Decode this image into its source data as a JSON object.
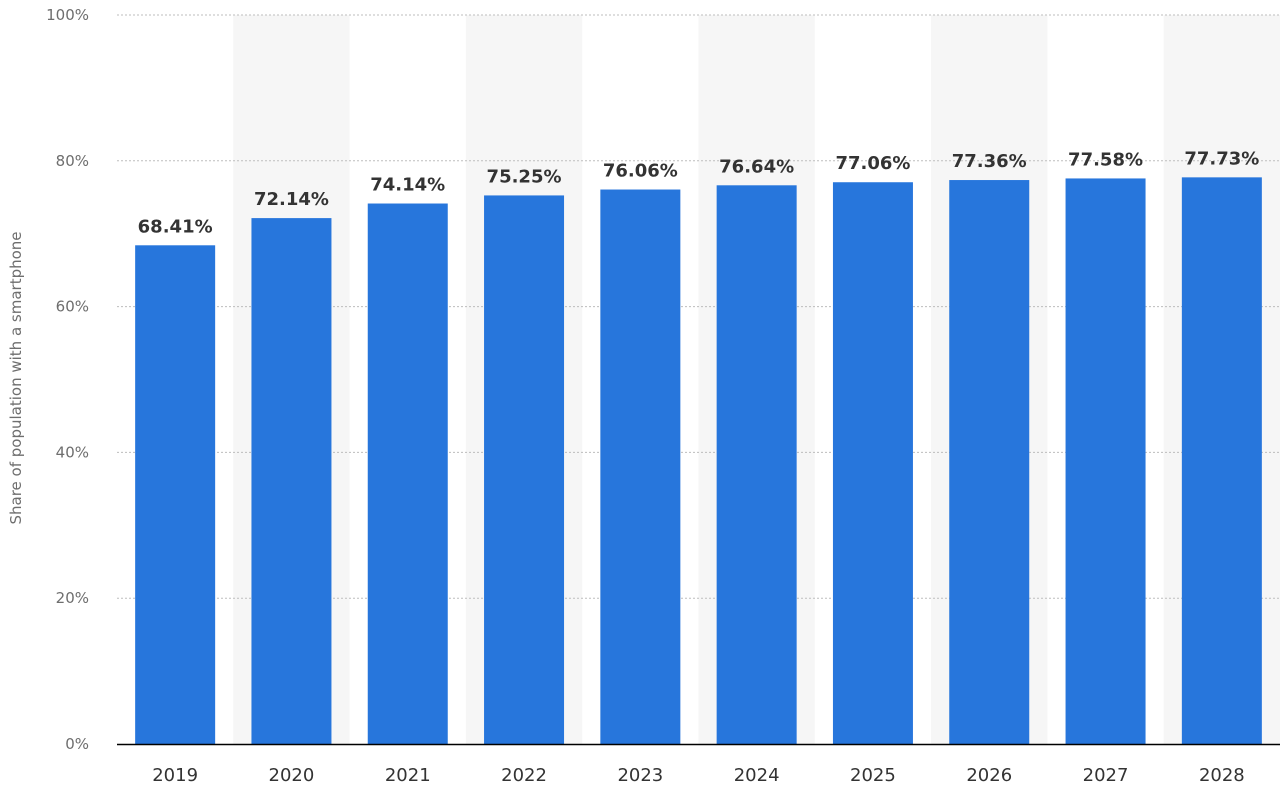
{
  "chart_data": {
    "type": "bar",
    "title": "",
    "xlabel": "",
    "ylabel": "Share of population with a smartphone",
    "categories": [
      "2019",
      "2020",
      "2021",
      "2022",
      "2023",
      "2024",
      "2025",
      "2026",
      "2027",
      "2028"
    ],
    "values": [
      68.41,
      72.14,
      74.14,
      75.25,
      76.06,
      76.64,
      77.06,
      77.36,
      77.58,
      77.73
    ],
    "value_labels": [
      "68.41%",
      "72.14%",
      "74.14%",
      "75.25%",
      "76.06%",
      "76.64%",
      "77.06%",
      "77.36%",
      "77.58%",
      "77.73%"
    ],
    "ylim": [
      0,
      100
    ],
    "y_ticks": [
      0,
      20,
      40,
      60,
      80,
      100
    ],
    "y_tick_labels": [
      "0%",
      "20%",
      "40%",
      "60%",
      "80%",
      "100%"
    ],
    "grid": true,
    "grid_style": "dotted",
    "legend": "none",
    "colors": {
      "bar": "#2776dc",
      "band": "#f6f6f6",
      "grid": "#bdbdbd",
      "axis": "#000000",
      "label": "#333333",
      "tick_label": "#6e6e6e"
    }
  }
}
